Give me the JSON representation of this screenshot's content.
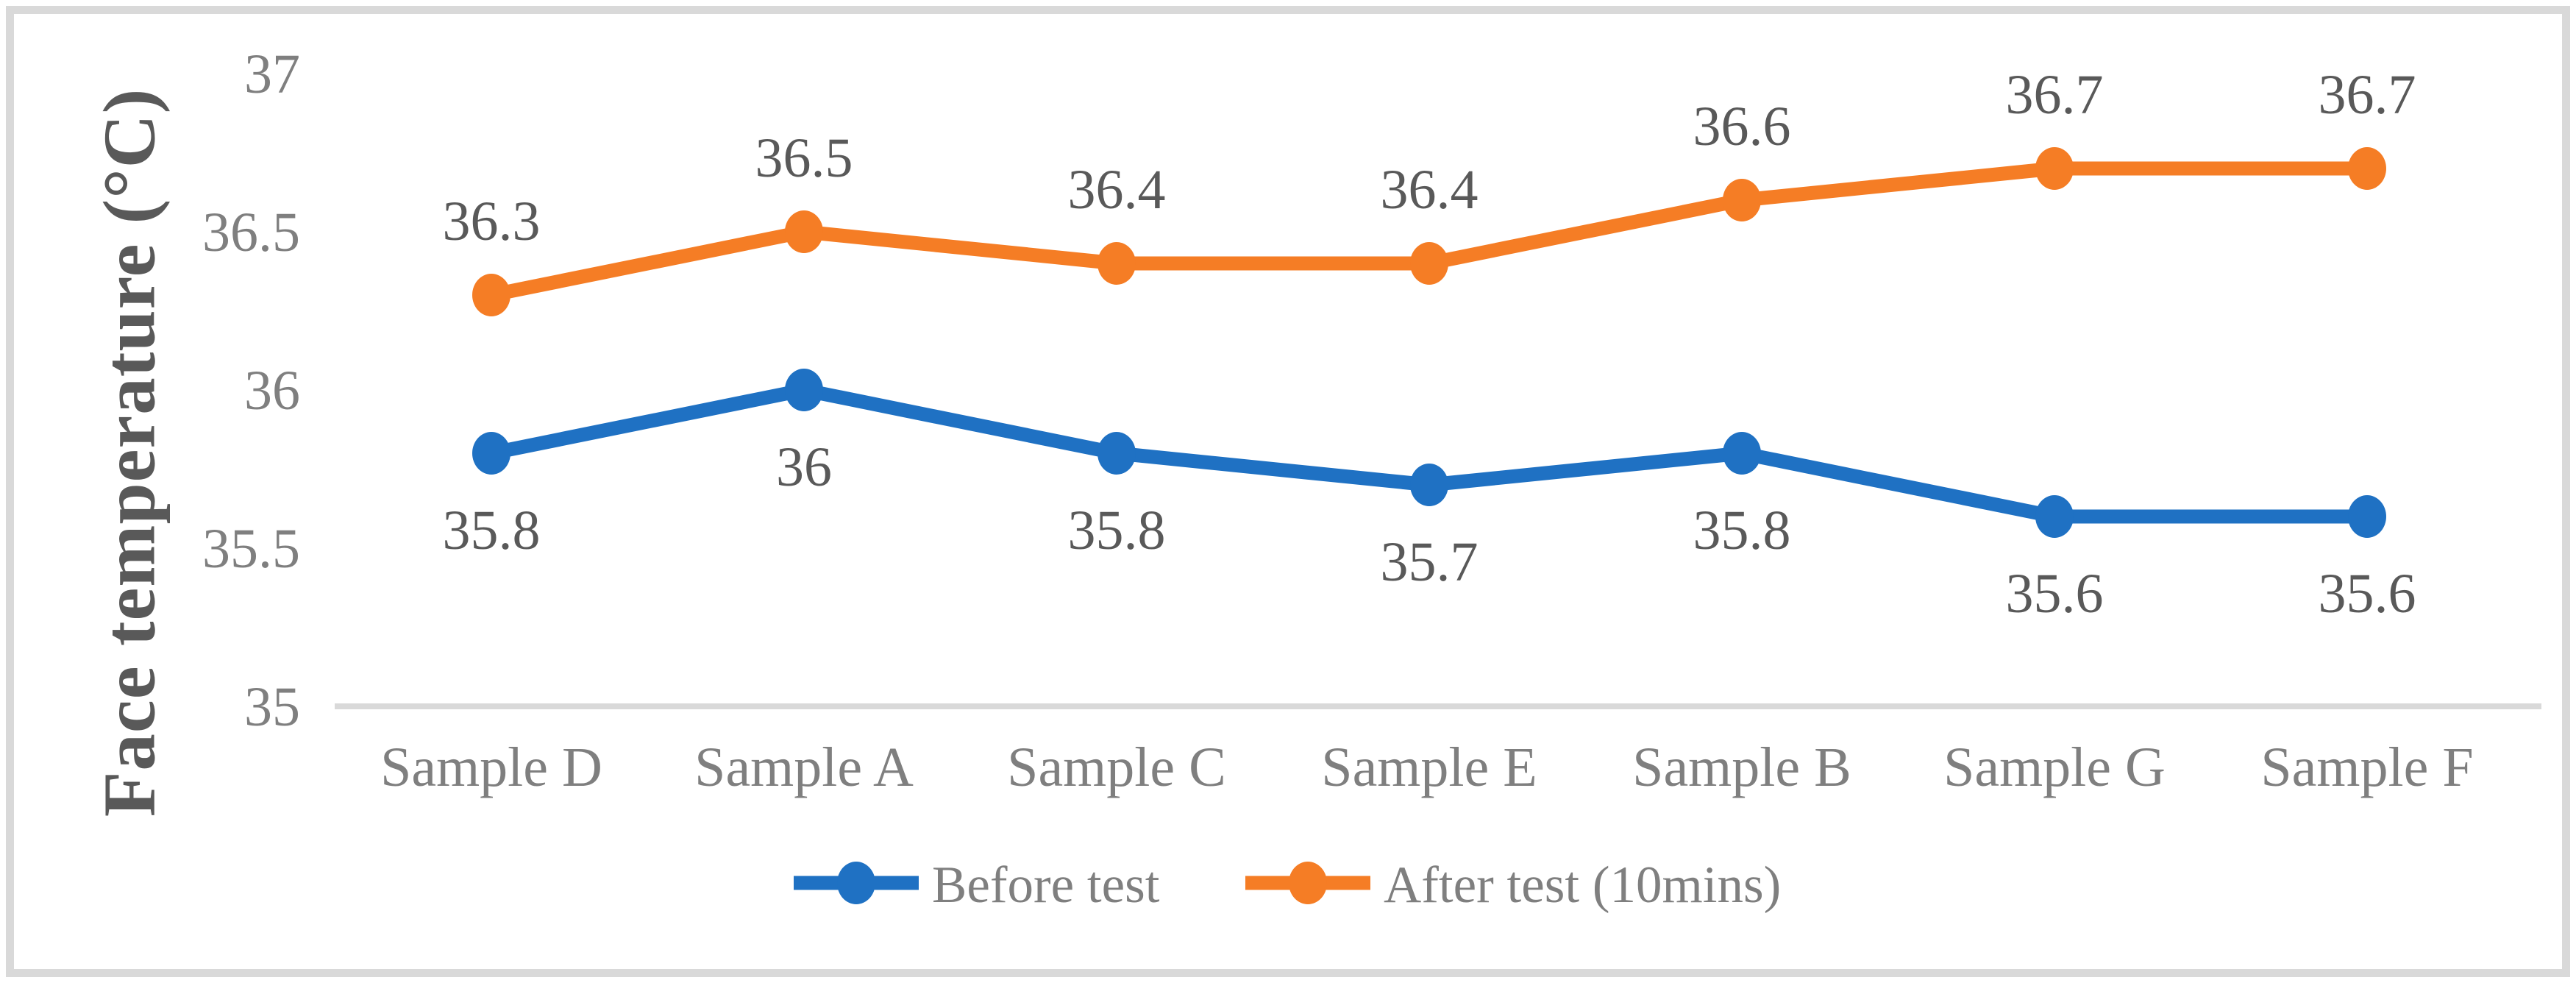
{
  "chart_data": {
    "type": "line",
    "title": "",
    "xlabel": "",
    "ylabel": "Face temperature (°C)",
    "categories": [
      "Sample D",
      "Sample A",
      "Sample C",
      "Sample E",
      "Sample B",
      "Sample G",
      "Sample F"
    ],
    "series": [
      {
        "name": "Before test",
        "color": "#1F71C3",
        "values": [
          35.8,
          36,
          35.8,
          35.7,
          35.8,
          35.6,
          35.6
        ],
        "point_labels": [
          "35.8",
          "36",
          "35.8",
          "35.7",
          "35.8",
          "35.6",
          "35.6"
        ],
        "label_position": "below"
      },
      {
        "name": "After test (10mins)",
        "color": "#F57D25",
        "values": [
          36.3,
          36.5,
          36.4,
          36.4,
          36.6,
          36.7,
          36.7
        ],
        "point_labels": [
          "36.3",
          "36.5",
          "36.4",
          "36.4",
          "36.6",
          "36.7",
          "36.7"
        ],
        "label_position": "above"
      }
    ],
    "y_axis": {
      "min": 35,
      "max": 37,
      "step": 0.5,
      "ticks": [
        "35",
        "35.5",
        "36",
        "36.5",
        "37"
      ]
    },
    "grid": false,
    "legend_position": "bottom",
    "colors": {
      "axis_line": "#d9d9d9",
      "tick_text": "#7f7f7f",
      "category_text": "#7f7f7f",
      "legend_text": "#7f7f7f",
      "data_label_text": "#595959",
      "axis_title_text": "#595959",
      "frame_border": "#d9d9d9",
      "background": "#ffffff"
    }
  }
}
